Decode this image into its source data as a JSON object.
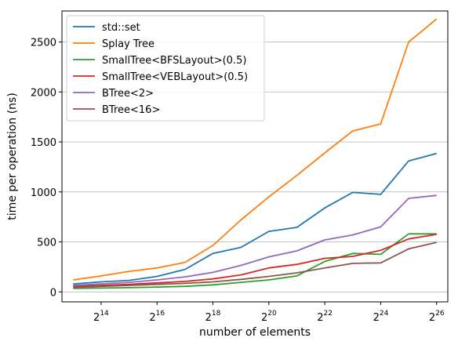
{
  "chart_data": {
    "type": "line",
    "xlabel": "number of elements",
    "ylabel": "time per operation (ns)",
    "x_scale": "log2",
    "x": [
      8192,
      16384,
      32768,
      65536,
      131072,
      262144,
      524288,
      1048576,
      2097152,
      4194304,
      8388608,
      16777216,
      33554432,
      67108864
    ],
    "x_ticks": [
      {
        "base": "2",
        "exp": "14",
        "value": 16384
      },
      {
        "base": "2",
        "exp": "16",
        "value": 65536
      },
      {
        "base": "2",
        "exp": "18",
        "value": 262144
      },
      {
        "base": "2",
        "exp": "20",
        "value": 1048576
      },
      {
        "base": "2",
        "exp": "22",
        "value": 4194304
      },
      {
        "base": "2",
        "exp": "24",
        "value": 16777216
      },
      {
        "base": "2",
        "exp": "26",
        "value": 67108864
      }
    ],
    "xlim_exp": [
      12.6,
      26.4
    ],
    "ylim": [
      -100,
      2810
    ],
    "y_ticks": [
      "0",
      "500",
      "1000",
      "1500",
      "2000",
      "2500"
    ],
    "grid": "horizontal",
    "legend_position": "upper-left",
    "series": [
      {
        "name": "std::set",
        "color": "#1f77b4",
        "values": [
          80,
          100,
          115,
          155,
          225,
          385,
          445,
          605,
          645,
          840,
          995,
          975,
          1310,
          1385
        ]
      },
      {
        "name": "Splay Tree",
        "color": "#ff7f0e",
        "values": [
          120,
          160,
          205,
          240,
          295,
          465,
          720,
          950,
          1165,
          1390,
          1610,
          1680,
          2500,
          2730
        ]
      },
      {
        "name": "SmallTree<BFSLayout>(0.5)",
        "color": "#2ca02c",
        "values": [
          35,
          38,
          42,
          48,
          55,
          70,
          95,
          120,
          160,
          305,
          385,
          375,
          580,
          580
        ]
      },
      {
        "name": "SmallTree<VEBLayout>(0.5)",
        "color": "#d62728",
        "values": [
          55,
          65,
          75,
          90,
          105,
          130,
          170,
          240,
          275,
          335,
          355,
          415,
          530,
          575
        ]
      },
      {
        "name": "BTree<2>",
        "color": "#9467bd",
        "values": [
          65,
          80,
          95,
          120,
          150,
          195,
          265,
          350,
          410,
          520,
          570,
          650,
          935,
          965
        ]
      },
      {
        "name": "BTree<16>",
        "color": "#8c564b",
        "values": [
          45,
          55,
          65,
          75,
          85,
          100,
          125,
          155,
          190,
          240,
          285,
          290,
          430,
          495
        ]
      }
    ]
  }
}
